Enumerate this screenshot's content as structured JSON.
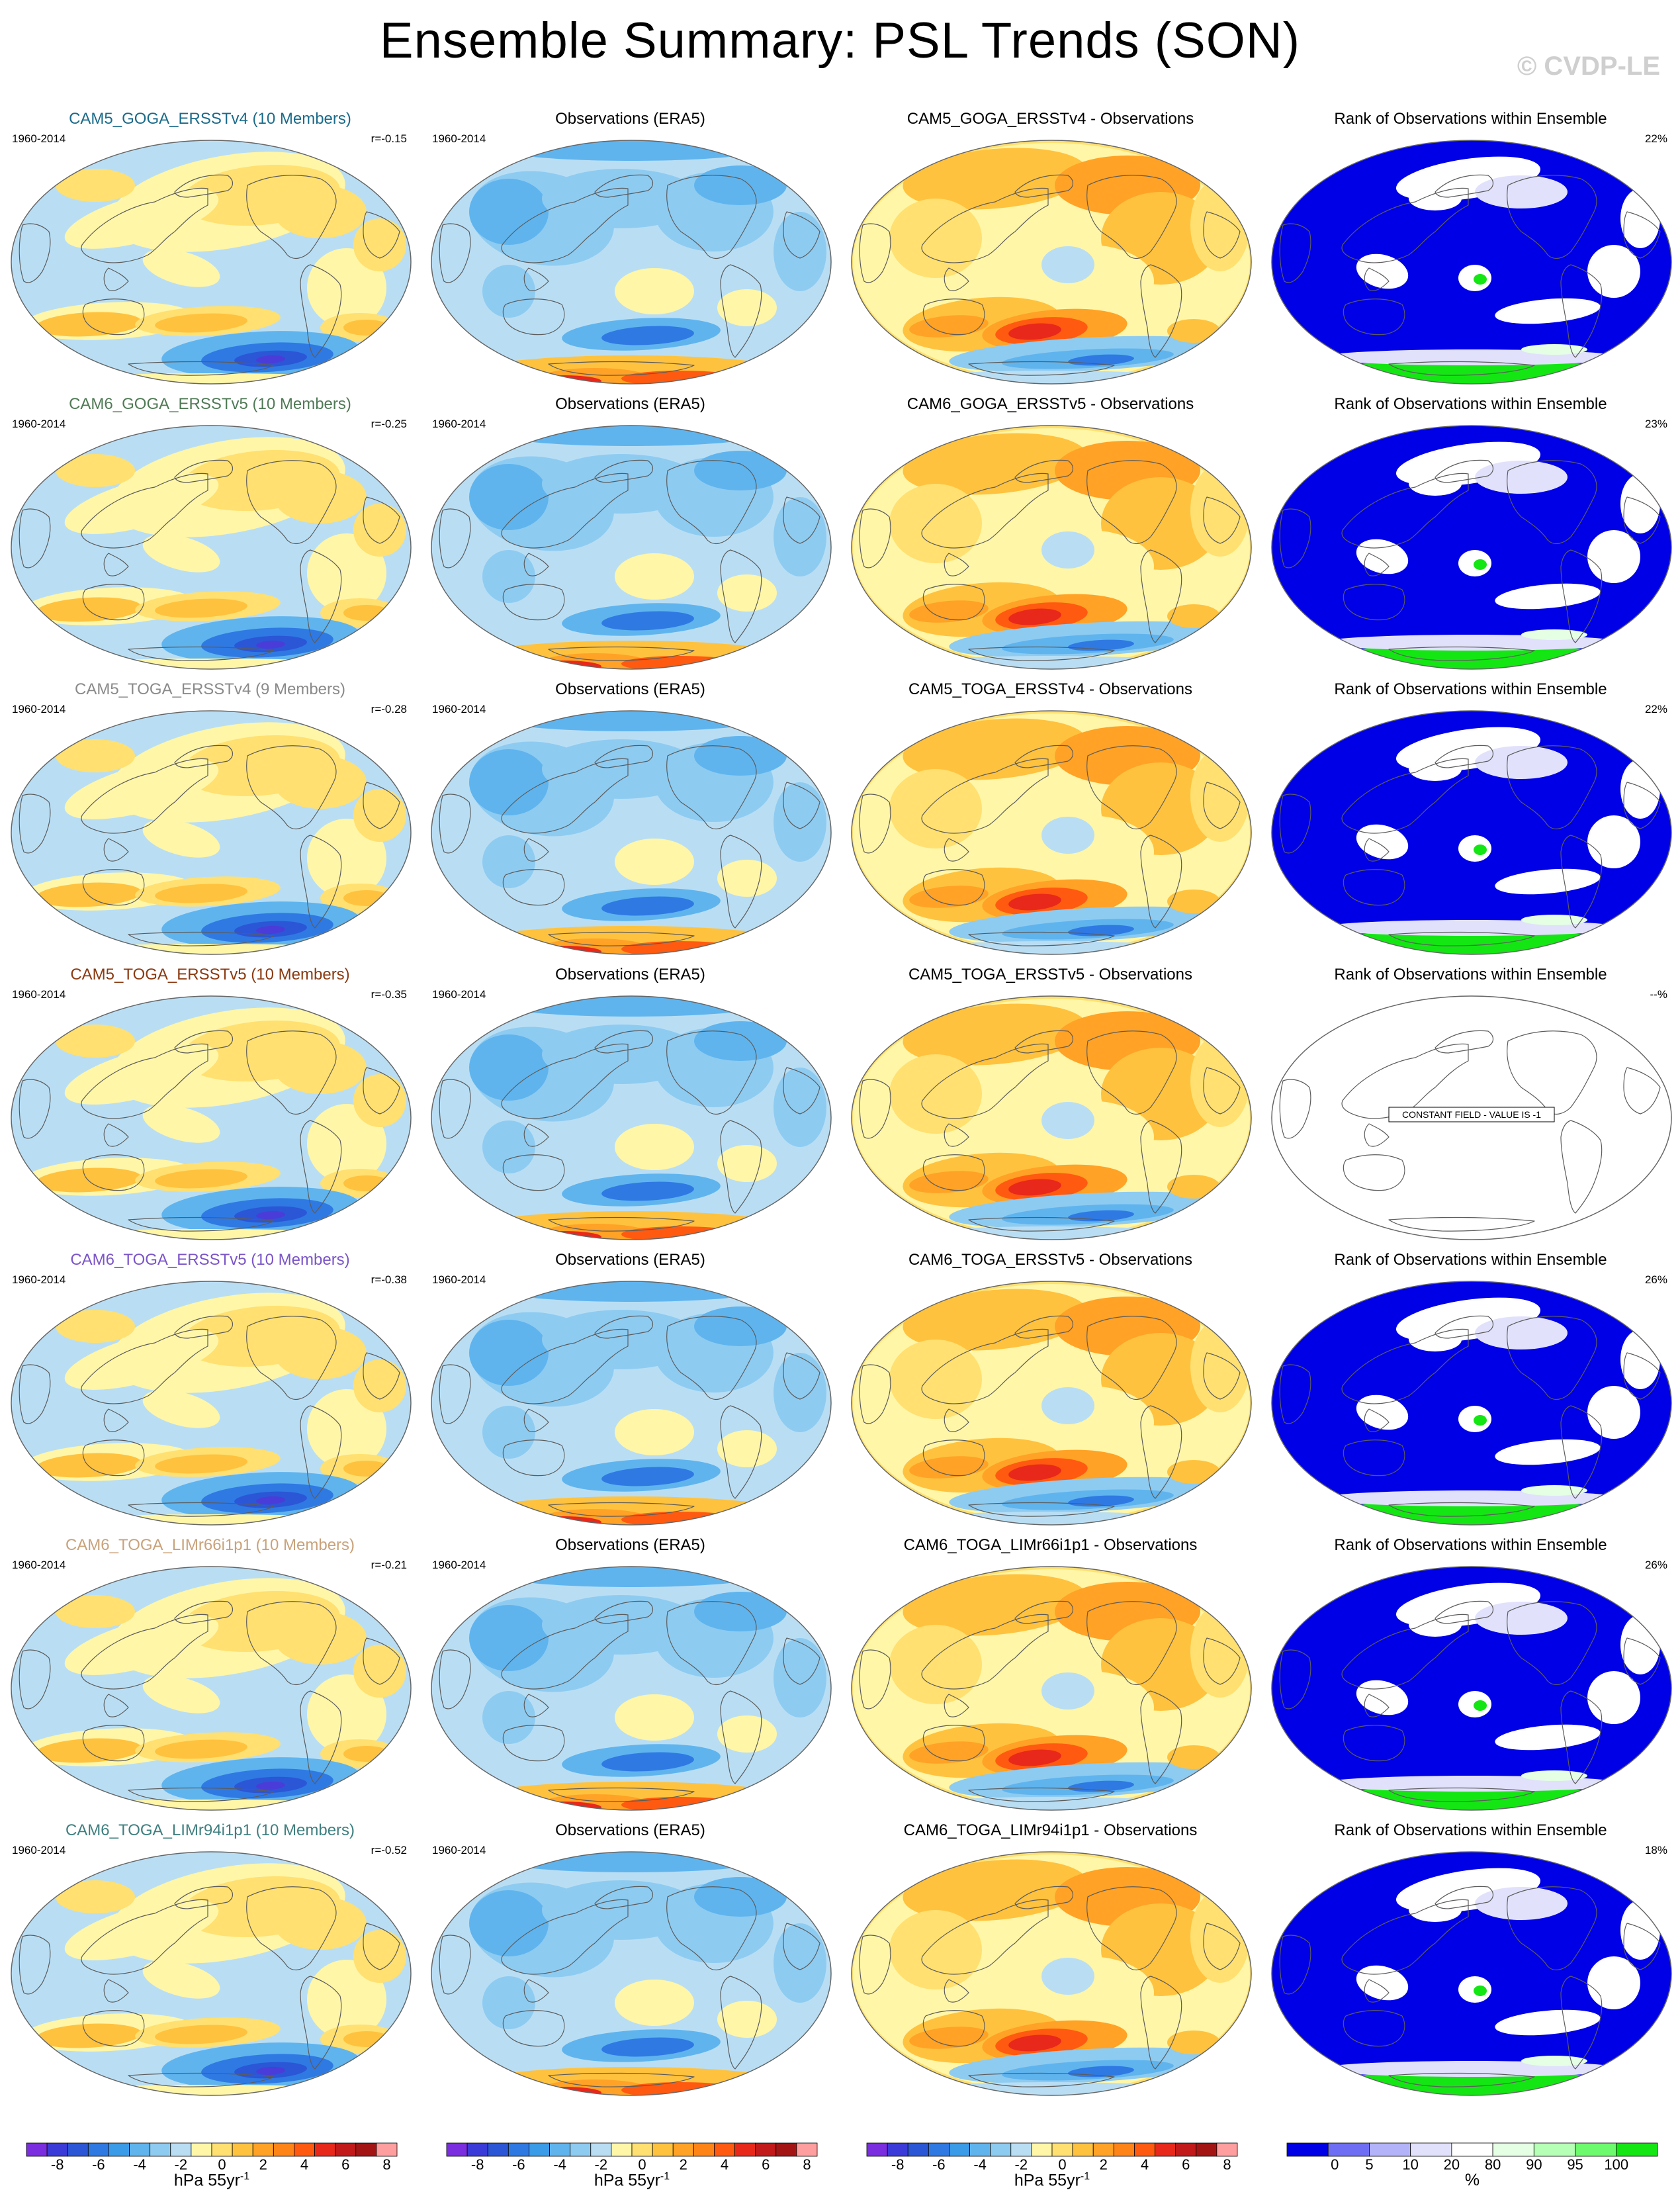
{
  "title": "Ensemble Summary: PSL Trends (SON)",
  "watermark": "© CVDP-LE",
  "period": "1960-2014",
  "obs_title": "Observations (ERA5)",
  "rank_title": "Rank of Observations within Ensemble",
  "diff_suffix": " - Observations",
  "constant_field_label": "CONSTANT FIELD - VALUE IS -1",
  "rows": [
    {
      "ensemble": "CAM5_GOGA_ERSSTv4 (10 Members)",
      "model": "CAM5_GOGA_ERSSTv4",
      "title_color": "#1b6b8a",
      "corr": "r=-0.15",
      "rank_pct": "22%"
    },
    {
      "ensemble": "CAM6_GOGA_ERSSTv5 (10 Members)",
      "model": "CAM6_GOGA_ERSSTv5",
      "title_color": "#4f7a55",
      "corr": "r=-0.25",
      "rank_pct": "23%"
    },
    {
      "ensemble": "CAM5_TOGA_ERSSTv4 (9 Members)",
      "model": "CAM5_TOGA_ERSSTv4",
      "title_color": "#8a8a8a",
      "corr": "r=-0.28",
      "rank_pct": "22%"
    },
    {
      "ensemble": "CAM5_TOGA_ERSSTv5 (10 Members)",
      "model": "CAM5_TOGA_ERSSTv5",
      "title_color": "#8b3a10",
      "corr": "r=-0.35",
      "rank_pct": "--%"
    },
    {
      "ensemble": "CAM6_TOGA_ERSSTv5 (10 Members)",
      "model": "CAM6_TOGA_ERSSTv5",
      "title_color": "#7b55c8",
      "corr": "r=-0.38",
      "rank_pct": "26%"
    },
    {
      "ensemble": "CAM6_TOGA_LIMr66i1p1 (10 Members)",
      "model": "CAM6_TOGA_LIMr66i1p1",
      "title_color": "#c9a27a",
      "corr": "r=-0.21",
      "rank_pct": "26%"
    },
    {
      "ensemble": "CAM6_TOGA_LIMr94i1p1 (10 Members)",
      "model": "CAM6_TOGA_LIMr94i1p1",
      "title_color": "#3f7f7f",
      "corr": "r=-0.52",
      "rank_pct": "18%"
    }
  ],
  "colorbars": {
    "trend": {
      "units_main": "hPa 55yr",
      "units_sup": "-1",
      "labels": [
        "-8",
        "-6",
        "-4",
        "-2",
        "0",
        "2",
        "4",
        "6",
        "8"
      ],
      "colors": [
        "#7a2ee0",
        "#3b3bd9",
        "#2b56d6",
        "#2f79e3",
        "#3a9be8",
        "#5fb4ee",
        "#8ecbf1",
        "#b9def4",
        "#fff6a8",
        "#ffe070",
        "#ffc23e",
        "#ffa225",
        "#ff8418",
        "#ff5a10",
        "#e8281a",
        "#c21a1a",
        "#a31515",
        "#ff9e9e"
      ]
    },
    "rank": {
      "units_main": "%",
      "labels": [
        "0",
        "5",
        "10",
        "20",
        "80",
        "90",
        "95",
        "100"
      ],
      "colors": [
        "#0000e6",
        "#6e6ef5",
        "#b3b3fa",
        "#e1e1fc",
        "#ffffff",
        "#e5ffe5",
        "#b6ffb6",
        "#6dfa6d",
        "#14e614"
      ]
    }
  }
}
